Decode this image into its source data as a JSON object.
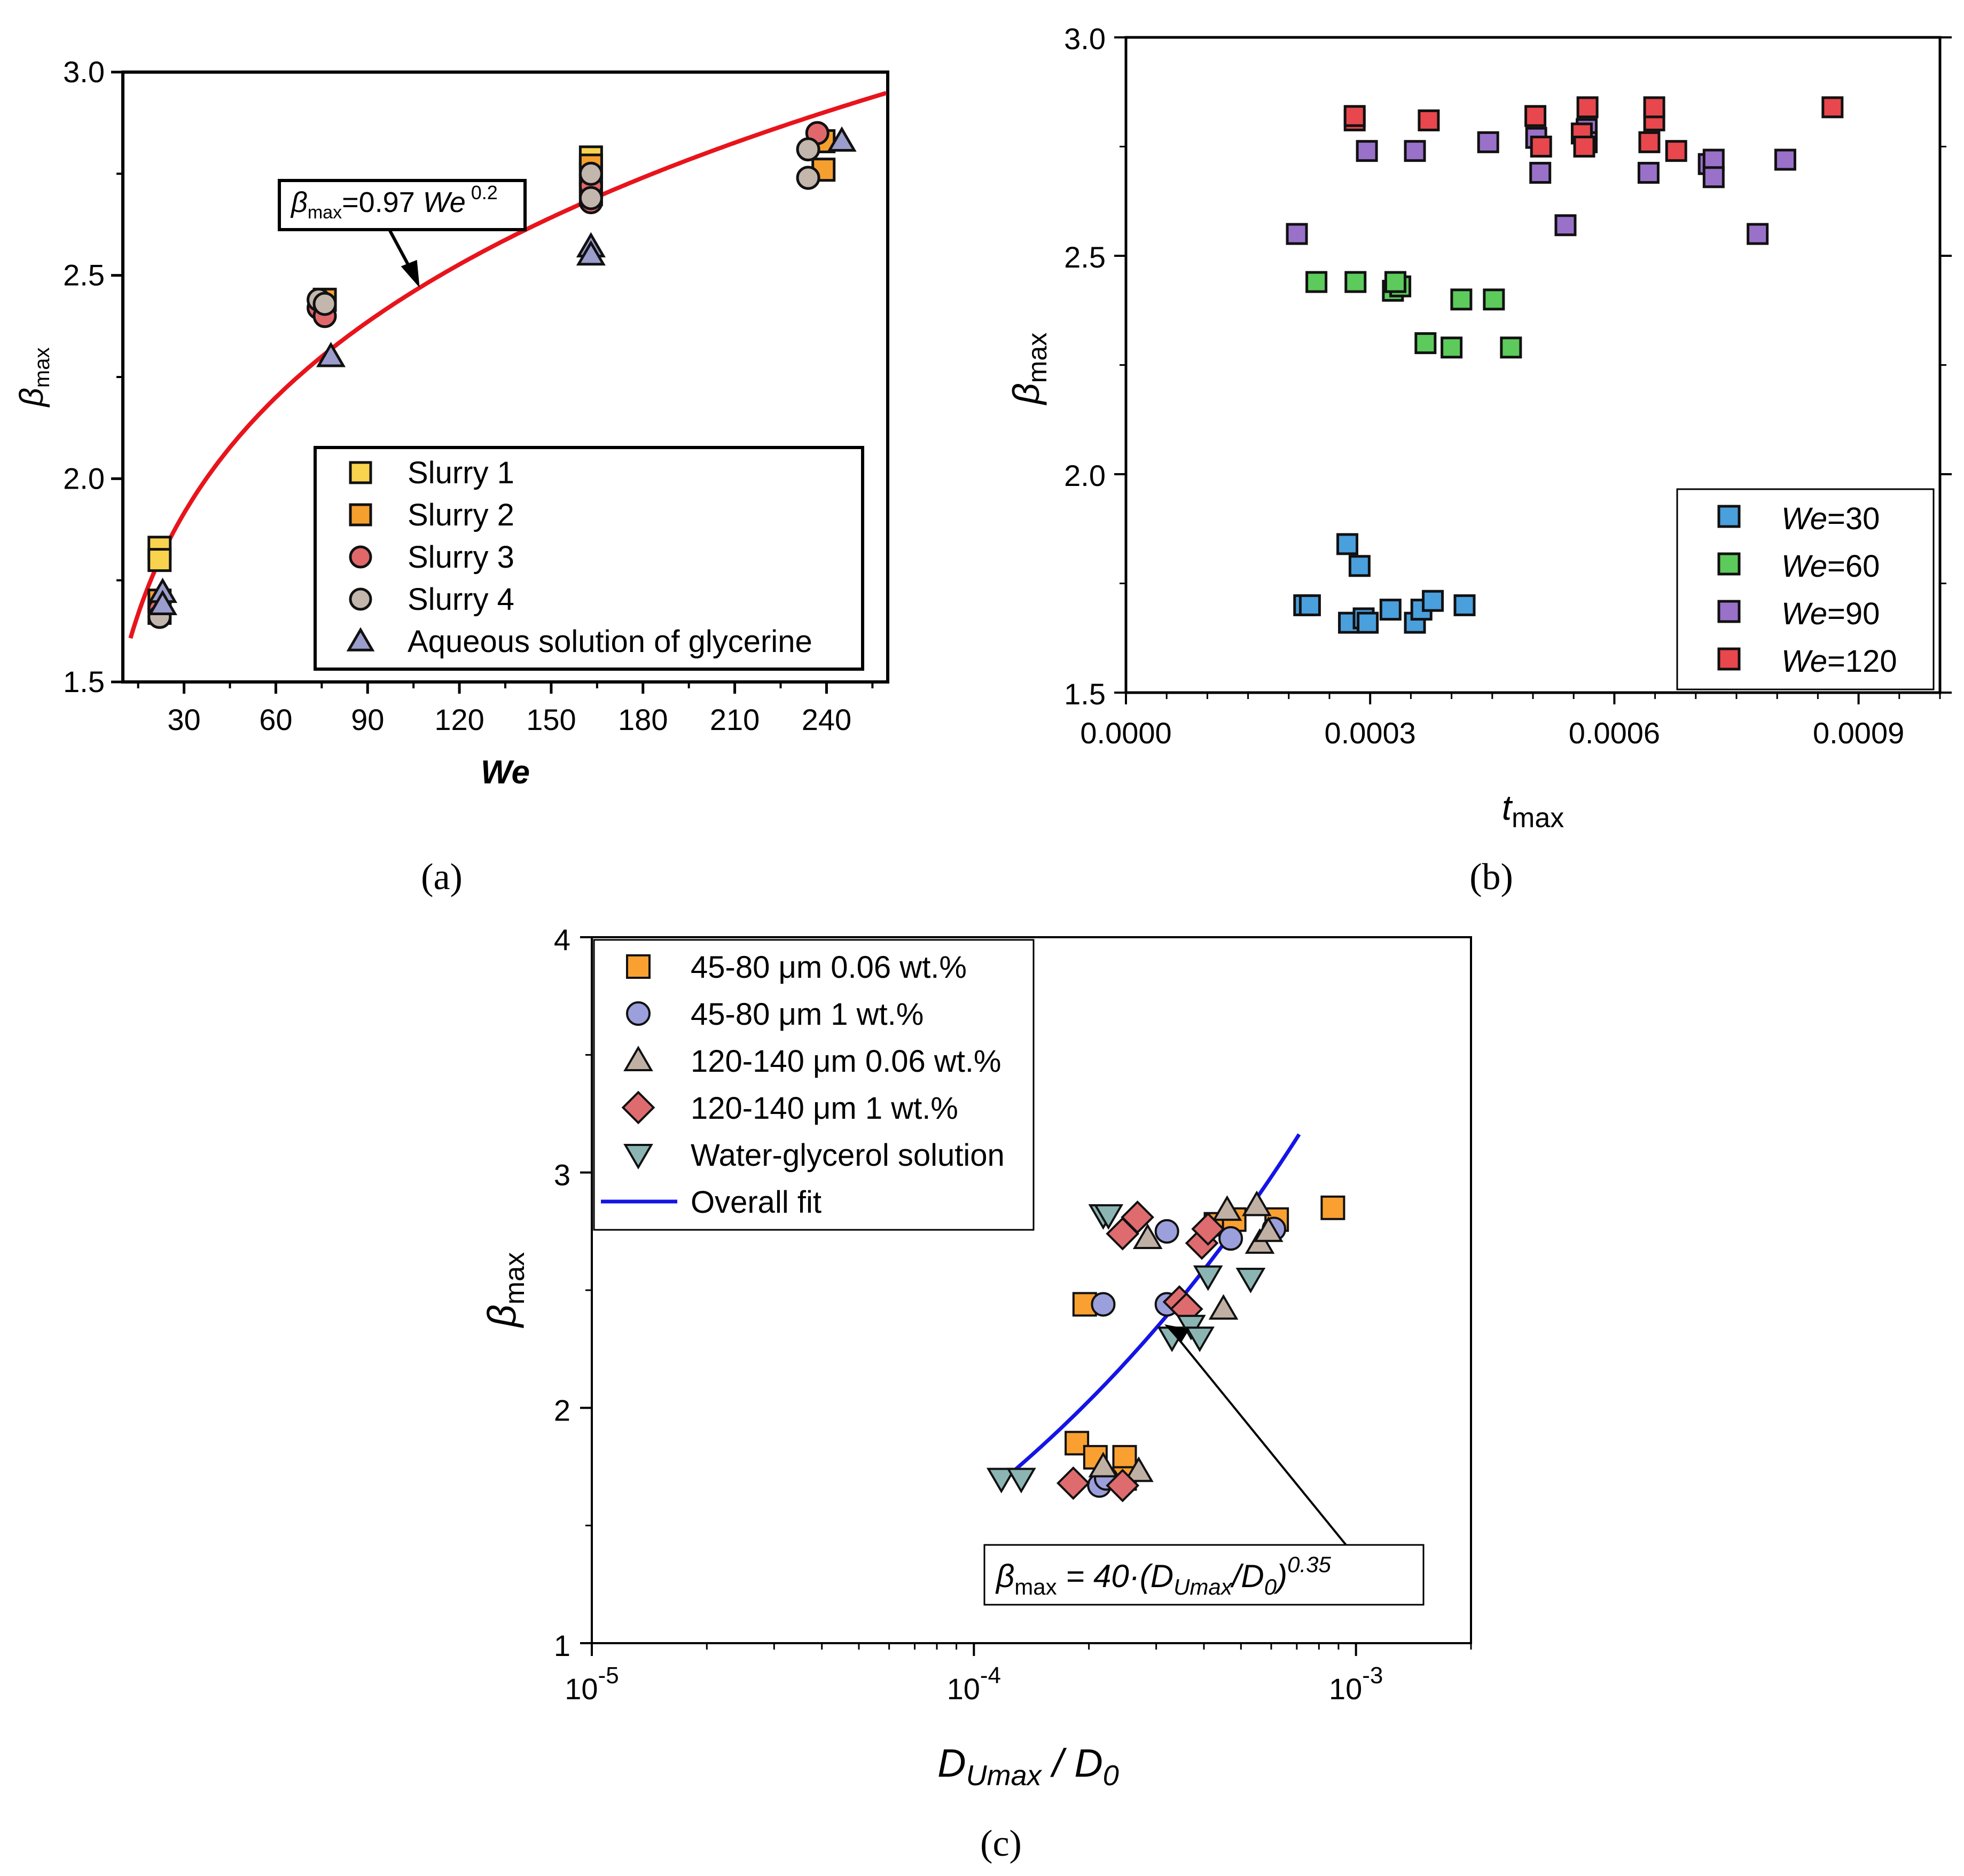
{
  "chart_data": [
    {
      "id": "a",
      "type": "scatter",
      "caption": "(a)",
      "xlabel": "We",
      "ylabel": "βmax",
      "xlim": [
        10,
        260
      ],
      "ylim": [
        1.5,
        3.0
      ],
      "xticks": [
        30,
        60,
        90,
        120,
        150,
        180,
        210,
        240
      ],
      "yticks": [
        1.5,
        2.0,
        2.5,
        3.0
      ],
      "ytick_labels": [
        "1.5",
        "2.0",
        "2.5",
        "3.0"
      ],
      "fit": {
        "label_lhs": "β",
        "label_sub": "max",
        "label_mid": "=0.97 ",
        "label_var": "We",
        "label_exp": " 0.2",
        "coef": 0.97,
        "exponent": 0.2,
        "color": "#e8141c",
        "annotation_at": 107
      },
      "series": [
        {
          "name": "Slurry 1",
          "marker": "square",
          "color": "#f9d34e",
          "points": [
            [
              22,
              1.83
            ],
            [
              22,
              1.8
            ],
            [
              163,
              2.79
            ],
            [
              163,
              2.75
            ],
            [
              163,
              2.72
            ]
          ]
        },
        {
          "name": "Slurry 2",
          "marker": "square",
          "color": "#f5a02e",
          "points": [
            [
              22,
              1.67
            ],
            [
              22,
              1.7
            ],
            [
              76,
              2.44
            ],
            [
              163,
              2.77
            ],
            [
              163,
              2.7
            ],
            [
              239,
              2.76
            ],
            [
              239,
              2.83
            ]
          ]
        },
        {
          "name": "Slurry 3",
          "marker": "circle",
          "color": "#e0686b",
          "points": [
            [
              22,
              1.68
            ],
            [
              74,
              2.42
            ],
            [
              76,
              2.4
            ],
            [
              163,
              2.72
            ],
            [
              163,
              2.68
            ],
            [
              237,
              2.85
            ]
          ]
        },
        {
          "name": "Slurry 4",
          "marker": "circle",
          "color": "#c3b6ad",
          "points": [
            [
              22,
              1.66
            ],
            [
              74,
              2.44
            ],
            [
              76,
              2.43
            ],
            [
              163,
              2.75
            ],
            [
              163,
              2.69
            ],
            [
              234,
              2.81
            ],
            [
              234,
              2.74
            ]
          ]
        },
        {
          "name": "Aqueous solution of glycerine",
          "marker": "triangle",
          "color": "#9b9dcc",
          "points": [
            [
              23,
              1.72
            ],
            [
              23,
              1.69
            ],
            [
              78,
              2.3
            ],
            [
              163,
              2.57
            ],
            [
              163,
              2.55
            ],
            [
              245,
              2.83
            ]
          ]
        }
      ]
    },
    {
      "id": "b",
      "type": "scatter",
      "caption": "(b)",
      "xlabel": "t",
      "xlabel_sub": "max",
      "ylabel": "βmax",
      "xlim": [
        0,
        0.001
      ],
      "ylim": [
        1.5,
        3.0
      ],
      "xticks": [
        0.0,
        0.0003,
        0.0006,
        0.0009
      ],
      "xtick_labels": [
        "0.0000",
        "0.0003",
        "0.0006",
        "0.0009"
      ],
      "yticks": [
        1.5,
        2.0,
        2.5,
        3.0
      ],
      "ytick_labels": [
        "1.5",
        "2.0",
        "2.5",
        "3.0"
      ],
      "series": [
        {
          "name": "We=30",
          "legend_var": "We",
          "legend_val": "=30",
          "marker": "square",
          "color": "#4a9fdd",
          "points": [
            [
              0.000219,
              1.7
            ],
            [
              0.000226,
              1.7
            ],
            [
              0.000274,
              1.66
            ],
            [
              0.000292,
              1.67
            ],
            [
              0.000297,
              1.66
            ],
            [
              0.000325,
              1.69
            ],
            [
              0.000287,
              1.79
            ],
            [
              0.000272,
              1.84
            ],
            [
              0.000355,
              1.66
            ],
            [
              0.000363,
              1.69
            ],
            [
              0.000377,
              1.71
            ],
            [
              0.000416,
              1.7
            ]
          ]
        },
        {
          "name": "We=60",
          "legend_var": "We",
          "legend_val": "=60",
          "marker": "square",
          "color": "#5ccb5b",
          "points": [
            [
              0.000234,
              2.44
            ],
            [
              0.000282,
              2.44
            ],
            [
              0.000328,
              2.42
            ],
            [
              0.000337,
              2.43
            ],
            [
              0.000368,
              2.3
            ],
            [
              0.0004,
              2.29
            ],
            [
              0.000412,
              2.4
            ],
            [
              0.000452,
              2.4
            ],
            [
              0.000473,
              2.29
            ],
            [
              0.000331,
              2.44
            ]
          ]
        },
        {
          "name": "We=90",
          "legend_var": "We",
          "legend_val": "=90",
          "marker": "square",
          "color": "#9a71c9",
          "points": [
            [
              0.00021,
              2.55
            ],
            [
              0.000296,
              2.74
            ],
            [
              0.000355,
              2.74
            ],
            [
              0.000445,
              2.76
            ],
            [
              0.000504,
              2.77
            ],
            [
              0.000509,
              2.69
            ],
            [
              0.00054,
              2.57
            ],
            [
              0.000566,
              2.79
            ],
            [
              0.000566,
              2.76
            ],
            [
              0.000642,
              2.69
            ],
            [
              0.000716,
              2.71
            ],
            [
              0.000722,
              2.72
            ],
            [
              0.000722,
              2.68
            ],
            [
              0.000776,
              2.55
            ],
            [
              0.00081,
              2.72
            ]
          ]
        },
        {
          "name": "We=120",
          "legend_var": "We",
          "legend_val": "=120",
          "marker": "square",
          "color": "#e8474d",
          "points": [
            [
              0.000281,
              2.81
            ],
            [
              0.000281,
              2.82
            ],
            [
              0.000372,
              2.81
            ],
            [
              0.000503,
              2.82
            ],
            [
              0.00051,
              2.75
            ],
            [
              0.00056,
              2.78
            ],
            [
              0.000567,
              2.84
            ],
            [
              0.000649,
              2.81
            ],
            [
              0.000649,
              2.84
            ],
            [
              0.000676,
              2.74
            ],
            [
              0.000643,
              2.76
            ],
            [
              0.000563,
              2.75
            ],
            [
              0.000868,
              2.84
            ]
          ]
        }
      ]
    },
    {
      "id": "c",
      "type": "scatter",
      "caption": "(c)",
      "xscale": "log",
      "xlabel": "D",
      "xlabel_sub": "Umax",
      "xlabel_tail": " / D",
      "xlabel_tail_sub": "0",
      "ylabel": "βmax",
      "xlim": [
        1e-05,
        0.002
      ],
      "ylim": [
        1,
        4
      ],
      "xticks": [
        1e-05,
        0.0001,
        0.001
      ],
      "xtick_base": "10",
      "xtick_exps": [
        "-5",
        "-4",
        "-3"
      ],
      "yticks": [
        1,
        2,
        3,
        4
      ],
      "ytick_labels": [
        "1",
        "2",
        "3",
        "4"
      ],
      "fit": {
        "label": "Overall fit",
        "coef": 40,
        "exponent": 0.35,
        "color": "#1414e6",
        "x_range": [
          0.000118,
          0.00071
        ],
        "annotation_at": 0.00031
      },
      "fit_equation": {
        "lhs": "β",
        "lhs_sub": "max",
        "mid": " = 40·(D",
        "mid_sub": "Umax",
        "tail": "/D",
        "tail_sub": "0",
        "close": ")",
        "exp": "0.35"
      },
      "series": [
        {
          "name": "45-80 μm 0.06 wt.%",
          "marker": "square",
          "color": "#f9a030",
          "points": [
            [
              0.000186,
              1.85
            ],
            [
              0.000208,
              1.79
            ],
            [
              0.000248,
              1.79
            ],
            [
              0.000248,
              1.7
            ],
            [
              0.000195,
              2.44
            ],
            [
              0.00043,
              2.78
            ],
            [
              0.00048,
              2.8
            ],
            [
              0.00062,
              2.8
            ],
            [
              0.00087,
              2.85
            ]
          ]
        },
        {
          "name": "45-80 μm 1 wt.%",
          "marker": "circle",
          "color": "#9b9fdb",
          "points": [
            [
              0.000213,
              1.67
            ],
            [
              0.000222,
              1.7
            ],
            [
              0.000218,
              2.44
            ],
            [
              0.00032,
              2.44
            ],
            [
              0.00032,
              2.75
            ],
            [
              0.00061,
              2.76
            ],
            [
              0.00047,
              2.72
            ]
          ]
        },
        {
          "name": "120-140 μm 0.06 wt.%",
          "marker": "triangle",
          "color": "#c0b0a4",
          "points": [
            [
              0.000218,
              1.75
            ],
            [
              0.00027,
              1.73
            ],
            [
              0.000285,
              2.72
            ],
            [
              0.00045,
              2.42
            ],
            [
              0.00046,
              2.84
            ],
            [
              0.00055,
              2.86
            ],
            [
              0.00056,
              2.7
            ],
            [
              0.00059,
              2.75
            ]
          ]
        },
        {
          "name": "120-140 μm 1 wt.%",
          "marker": "diamond",
          "color": "#de6b6e",
          "points": [
            [
              0.000182,
              1.68
            ],
            [
              0.000245,
              1.67
            ],
            [
              0.000245,
              2.74
            ],
            [
              0.000268,
              2.81
            ],
            [
              0.000345,
              2.45
            ],
            [
              0.00036,
              2.42
            ],
            [
              0.000395,
              2.7
            ],
            [
              0.00041,
              2.76
            ]
          ]
        },
        {
          "name": "Water-glycerol solution",
          "marker": "triangle-down",
          "color": "#8ab5b3",
          "points": [
            [
              0.000118,
              1.7
            ],
            [
              0.000133,
              1.7
            ],
            [
              0.000218,
              2.82
            ],
            [
              0.000225,
              2.82
            ],
            [
              0.00033,
              2.3
            ],
            [
              0.00037,
              2.35
            ],
            [
              0.00039,
              2.3
            ],
            [
              0.00041,
              2.56
            ],
            [
              0.00053,
              2.55
            ]
          ]
        }
      ]
    }
  ]
}
